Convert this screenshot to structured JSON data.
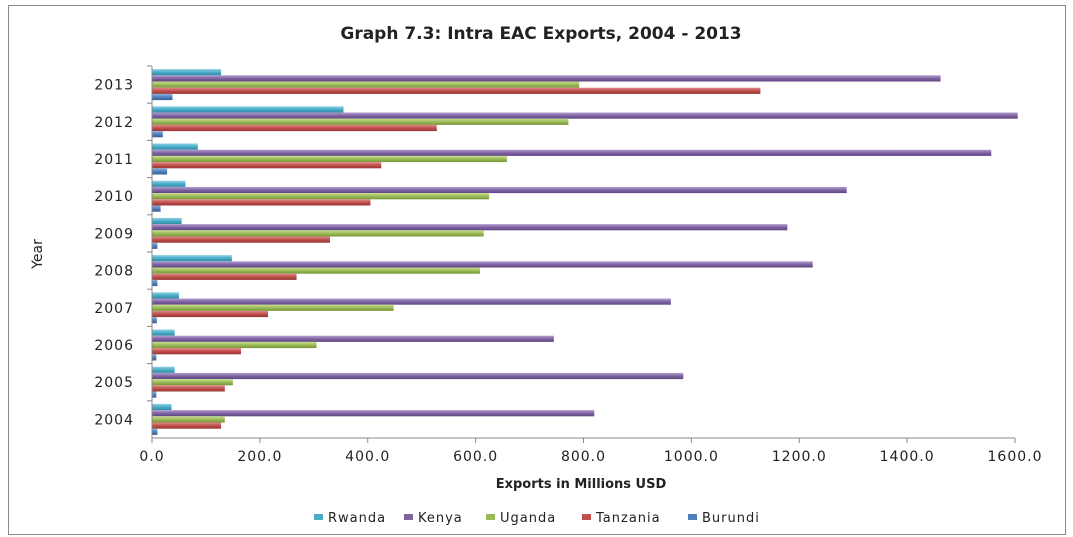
{
  "chart_data": {
    "type": "bar",
    "orientation": "horizontal",
    "title": "Graph 7.3: Intra EAC Exports, 2004 - 2013",
    "xlabel": "Exports in Millions USD",
    "ylabel": "Year",
    "xlim": [
      0,
      1600
    ],
    "x_ticks": [
      "0.0",
      "200.0",
      "400.0",
      "600.0",
      "800.0",
      "1000.0",
      "1200.0",
      "1400.0",
      "1600.0"
    ],
    "categories": [
      "2004",
      "2005",
      "2006",
      "2007",
      "2008",
      "2009",
      "2010",
      "2011",
      "2012",
      "2013"
    ],
    "series": [
      {
        "name": "Rwanda",
        "color": "#4bacc6",
        "values": [
          36,
          42,
          42,
          50,
          148,
          55,
          62,
          85,
          355,
          128
        ]
      },
      {
        "name": "Kenya",
        "color": "#8064a2",
        "values": [
          820,
          985,
          745,
          962,
          1225,
          1178,
          1288,
          1556,
          1605,
          1462
        ]
      },
      {
        "name": "Uganda",
        "color": "#9bbb59",
        "values": [
          135,
          150,
          305,
          448,
          608,
          615,
          625,
          658,
          772,
          792
        ]
      },
      {
        "name": "Tanzania",
        "color": "#c0504d",
        "values": [
          128,
          135,
          165,
          215,
          268,
          330,
          405,
          425,
          528,
          1128
        ]
      },
      {
        "name": "Burundi",
        "color": "#4f81bd",
        "values": [
          10,
          8,
          8,
          9,
          10,
          10,
          16,
          28,
          20,
          38
        ]
      }
    ],
    "legend_position": "bottom",
    "grid": false
  }
}
